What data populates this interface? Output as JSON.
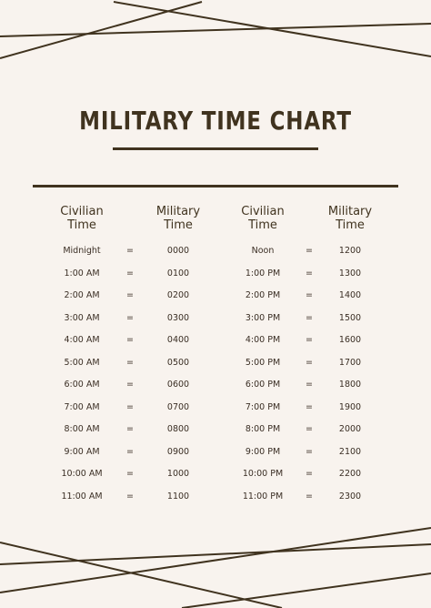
{
  "title": "MILITARY TIME CHART",
  "headers": {
    "left_civilian": [
      "Civilian",
      "Time"
    ],
    "left_military": [
      "Military",
      "Time"
    ],
    "right_civilian": [
      "Civilian",
      "Time"
    ],
    "right_military": [
      "Military",
      "Time"
    ]
  },
  "equals_symbol": "=",
  "rows": [
    {
      "civ_am": "Midnight",
      "mil_am": "0000",
      "civ_pm": "Noon",
      "mil_pm": "1200"
    },
    {
      "civ_am": "1:00 AM",
      "mil_am": "0100",
      "civ_pm": "1:00 PM",
      "mil_pm": "1300"
    },
    {
      "civ_am": "2:00 AM",
      "mil_am": "0200",
      "civ_pm": "2:00 PM",
      "mil_pm": "1400"
    },
    {
      "civ_am": "3:00 AM",
      "mil_am": "0300",
      "civ_pm": "3:00 PM",
      "mil_pm": "1500"
    },
    {
      "civ_am": "4:00 AM",
      "mil_am": "0400",
      "civ_pm": "4:00 PM",
      "mil_pm": "1600"
    },
    {
      "civ_am": "5:00 AM",
      "mil_am": "0500",
      "civ_pm": "5:00 PM",
      "mil_pm": "1700"
    },
    {
      "civ_am": "6:00 AM",
      "mil_am": "0600",
      "civ_pm": "6:00 PM",
      "mil_pm": "1800"
    },
    {
      "civ_am": "7:00 AM",
      "mil_am": "0700",
      "civ_pm": "7:00 PM",
      "mil_pm": "1900"
    },
    {
      "civ_am": "8:00 AM",
      "mil_am": "0800",
      "civ_pm": "8:00 PM",
      "mil_pm": "2000"
    },
    {
      "civ_am": "9:00 AM",
      "mil_am": "0900",
      "civ_pm": "9:00 PM",
      "mil_pm": "2100"
    },
    {
      "civ_am": "10:00 AM",
      "mil_am": "1000",
      "civ_pm": "10:00 PM",
      "mil_pm": "2200"
    },
    {
      "civ_am": "11:00 AM",
      "mil_am": "1100",
      "civ_pm": "11:00 PM",
      "mil_pm": "2300"
    }
  ]
}
